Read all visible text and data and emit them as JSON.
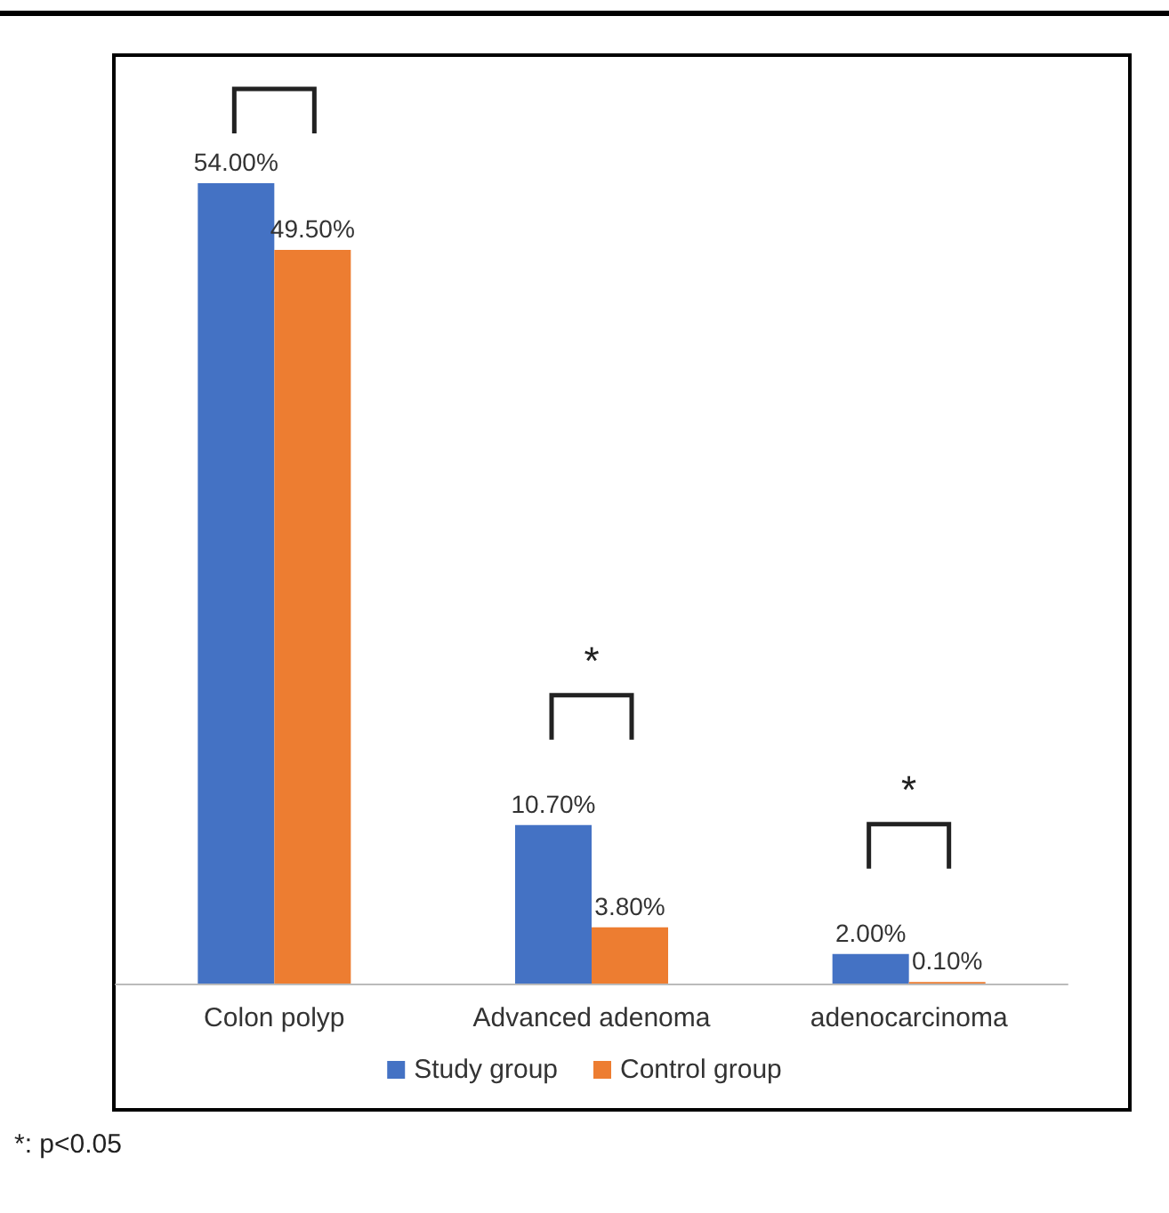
{
  "chart_data": {
    "type": "bar",
    "categories": [
      "Colon polyp",
      "Advanced adenoma",
      "adenocarcinoma"
    ],
    "series": [
      {
        "name": "Study group",
        "color": "#4472c4",
        "values": [
          54.0,
          10.7,
          2.0
        ],
        "value_labels": [
          "54.00%",
          "10.70%",
          "2.00%"
        ]
      },
      {
        "name": "Control group",
        "color": "#ed7d31",
        "values": [
          49.5,
          3.8,
          0.1
        ],
        "value_labels": [
          "49.50%",
          "3.80%",
          "0.10%"
        ]
      }
    ],
    "annotations": [
      "*",
      "*",
      "*: p<0.05"
    ],
    "legend": "bottom"
  }
}
